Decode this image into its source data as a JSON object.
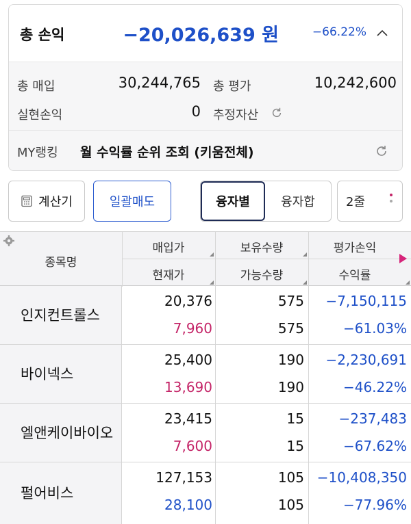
{
  "summary": {
    "total_pl_label": "총 손익",
    "total_pl_amount": "−20,026,639 원",
    "total_pl_pct": "−66.22%",
    "purchase_label": "총 매입",
    "purchase_value": "30,244,765",
    "eval_label": "총 평가",
    "eval_value": "10,242,600",
    "realized_label": "실현손익",
    "realized_value": "0",
    "est_assets_label": "추정자산",
    "ranking_label": "MY랭킹",
    "ranking_text": "월 수익률 순위 조회 (키움전체)"
  },
  "toolbar": {
    "calc_label": "계산기",
    "bulk_sell_label": "일괄매도",
    "seg_by_loan": "융자별",
    "seg_loan_sum": "융자합",
    "lines_label": "2줄"
  },
  "table": {
    "headers": {
      "name": "종목명",
      "buy_price": "매입가",
      "cur_price": "현재가",
      "hold_qty": "보유수량",
      "avail_qty": "가능수량",
      "eval_pl": "평가손익",
      "return_rate": "수익률"
    },
    "rows": [
      {
        "name": "인지컨트롤스",
        "buy_price": "20,376",
        "cur_price": "7,960",
        "cur_color": "red",
        "hold_qty": "575",
        "avail_qty": "575",
        "eval_pl": "−7,150,115",
        "return_rate": "−61.03%"
      },
      {
        "name": "바이넥스",
        "buy_price": "25,400",
        "cur_price": "13,690",
        "cur_color": "red",
        "hold_qty": "190",
        "avail_qty": "190",
        "eval_pl": "−2,230,691",
        "return_rate": "−46.22%"
      },
      {
        "name": "엘앤케이바이오",
        "buy_price": "23,415",
        "cur_price": "7,600",
        "cur_color": "red",
        "hold_qty": "15",
        "avail_qty": "15",
        "eval_pl": "−237,483",
        "return_rate": "−67.62%"
      },
      {
        "name": "펄어비스",
        "buy_price": "127,153",
        "cur_price": "28,100",
        "cur_color": "blue",
        "hold_qty": "105",
        "avail_qty": "105",
        "eval_pl": "−10,408,350",
        "return_rate": "−77.96%"
      }
    ]
  },
  "colors": {
    "loss_blue": "#1e50c8",
    "rise_red": "#c42467",
    "accent_pink": "#d6247a"
  },
  "icons": [
    "chevron-up-icon",
    "refresh-icon",
    "calculator-icon",
    "more-dots-icon",
    "gear-icon",
    "play-arrow-icon",
    "sort-corner-icon"
  ]
}
